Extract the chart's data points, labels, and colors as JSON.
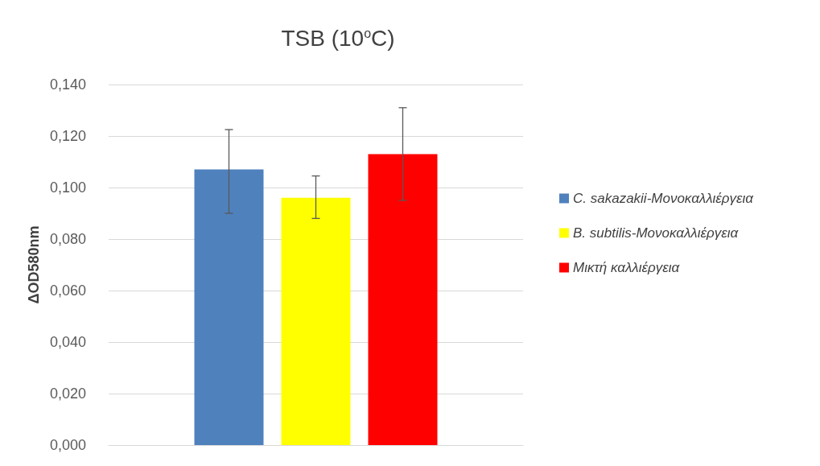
{
  "chart_data": {
    "type": "bar",
    "title": "TSB (10$^{o}$C)",
    "ylabel": "ΔOD580nm",
    "categories": [
      null
    ],
    "series": [
      {
        "name": "C. sakazakii-Μονοκαλλιέργεια",
        "color": "#4f81bd",
        "values": [
          0.107
        ],
        "errors": [
          [
            0.09,
            0.1225
          ]
        ]
      },
      {
        "name": "B. subtilis-Μονοκαλλιέργεια",
        "color": "#ffff00",
        "values": [
          0.096
        ],
        "errors": [
          [
            0.088,
            0.1045
          ]
        ]
      },
      {
        "name": "Μικτή καλλιέργεια",
        "color": "#ff0000",
        "values": [
          0.113
        ],
        "errors": [
          [
            0.095,
            0.131
          ]
        ]
      }
    ],
    "ylim": [
      0,
      0.14
    ],
    "yticks": [
      {
        "value": 0,
        "label": "0,000"
      },
      {
        "value": 0.02,
        "label": "0,020"
      },
      {
        "value": 0.04,
        "label": "0,040"
      },
      {
        "value": 0.06,
        "label": "0,060"
      },
      {
        "value": 0.08,
        "label": "0,080"
      },
      {
        "value": 0.1,
        "label": "0,100"
      },
      {
        "value": 0.12,
        "label": "0,120"
      },
      {
        "value": 0.14,
        "label": "0,140"
      }
    ],
    "grid": "y",
    "legend": "right"
  }
}
